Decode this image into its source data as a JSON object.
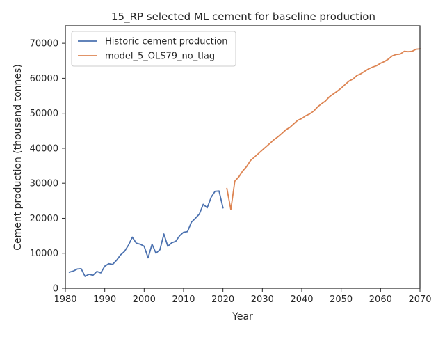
{
  "chart_data": {
    "type": "line",
    "title": "15_RP selected ML cement for baseline production",
    "xlabel": "Year",
    "ylabel": "Cement production (thousand tonnes)",
    "xlim": [
      1980,
      2070
    ],
    "ylim": [
      0,
      75000
    ],
    "x_ticks": [
      1980,
      1990,
      2000,
      2010,
      2020,
      2030,
      2040,
      2050,
      2060,
      2070
    ],
    "y_ticks": [
      0,
      10000,
      20000,
      30000,
      40000,
      50000,
      60000,
      70000
    ],
    "grid": false,
    "legend_position": "top-left",
    "series": [
      {
        "name": "Historic cement production",
        "color": "#4c72b0",
        "x": [
          1981,
          1982,
          1983,
          1984,
          1985,
          1986,
          1987,
          1988,
          1989,
          1990,
          1991,
          1992,
          1993,
          1994,
          1995,
          1996,
          1997,
          1998,
          1999,
          2000,
          2001,
          2002,
          2003,
          2004,
          2005,
          2006,
          2007,
          2008,
          2009,
          2010,
          2011,
          2012,
          2013,
          2014,
          2015,
          2016,
          2017,
          2018,
          2019,
          2020
        ],
        "y": [
          4600,
          4900,
          5500,
          5600,
          3400,
          4000,
          3700,
          4800,
          4400,
          6300,
          7000,
          6800,
          8000,
          9500,
          10500,
          12300,
          14600,
          12900,
          12600,
          12000,
          8700,
          12600,
          10000,
          11000,
          15500,
          12000,
          13000,
          13400,
          15000,
          16000,
          16200,
          18900,
          20000,
          21200,
          24000,
          23000,
          26000,
          27700,
          27800,
          23000
        ]
      },
      {
        "name": "model_5_OLS79_no_tlag",
        "color": "#dd8452",
        "x": [
          2021,
          2022,
          2023,
          2024,
          2025,
          2026,
          2027,
          2028,
          2029,
          2030,
          2031,
          2032,
          2033,
          2034,
          2035,
          2036,
          2037,
          2038,
          2039,
          2040,
          2041,
          2042,
          2043,
          2044,
          2045,
          2046,
          2047,
          2048,
          2049,
          2050,
          2051,
          2052,
          2053,
          2054,
          2055,
          2056,
          2057,
          2058,
          2059,
          2060,
          2061,
          2062,
          2063,
          2064,
          2065,
          2066,
          2067,
          2068,
          2069,
          2070
        ],
        "y": [
          28500,
          22500,
          30600,
          31800,
          33500,
          34800,
          36500,
          37500,
          38500,
          39500,
          40500,
          41500,
          42500,
          43300,
          44300,
          45300,
          46000,
          47000,
          48000,
          48500,
          49300,
          49800,
          50600,
          51800,
          52700,
          53500,
          54700,
          55500,
          56300,
          57200,
          58200,
          59200,
          59800,
          60800,
          61300,
          62000,
          62700,
          63200,
          63600,
          64300,
          64800,
          65500,
          66400,
          66800,
          66900,
          67700,
          67600,
          67700,
          68300,
          68400
        ]
      }
    ]
  }
}
